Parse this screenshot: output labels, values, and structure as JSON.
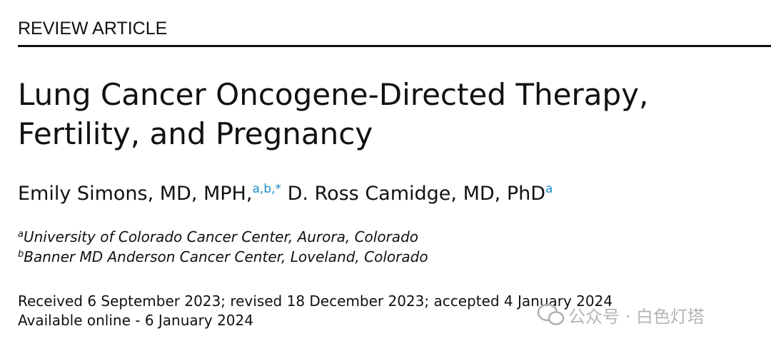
{
  "header": {
    "label": "REVIEW ARTICLE"
  },
  "title": {
    "lines": [
      "Lung Cancer Oncogene-Directed Therapy,",
      "Fertility, and Pregnancy"
    ]
  },
  "authors": [
    {
      "name": "Emily Simons, MD, MPH,",
      "marks": "a,b,*"
    },
    {
      "name": "D. Ross Camidge, MD, PhD",
      "marks": "a"
    }
  ],
  "affiliations": [
    {
      "mark": "a",
      "text": "University of Colorado Cancer Center, Aurora, Colorado"
    },
    {
      "mark": "b",
      "text": "Banner MD Anderson Cancer Center, Loveland, Colorado"
    }
  ],
  "dates": {
    "history": "Received 6 September 2023; revised 18 December 2023; accepted 4 January 2024",
    "online": "Available online - 6 January 2024"
  },
  "watermark": "公众号 · 白色灯塔"
}
